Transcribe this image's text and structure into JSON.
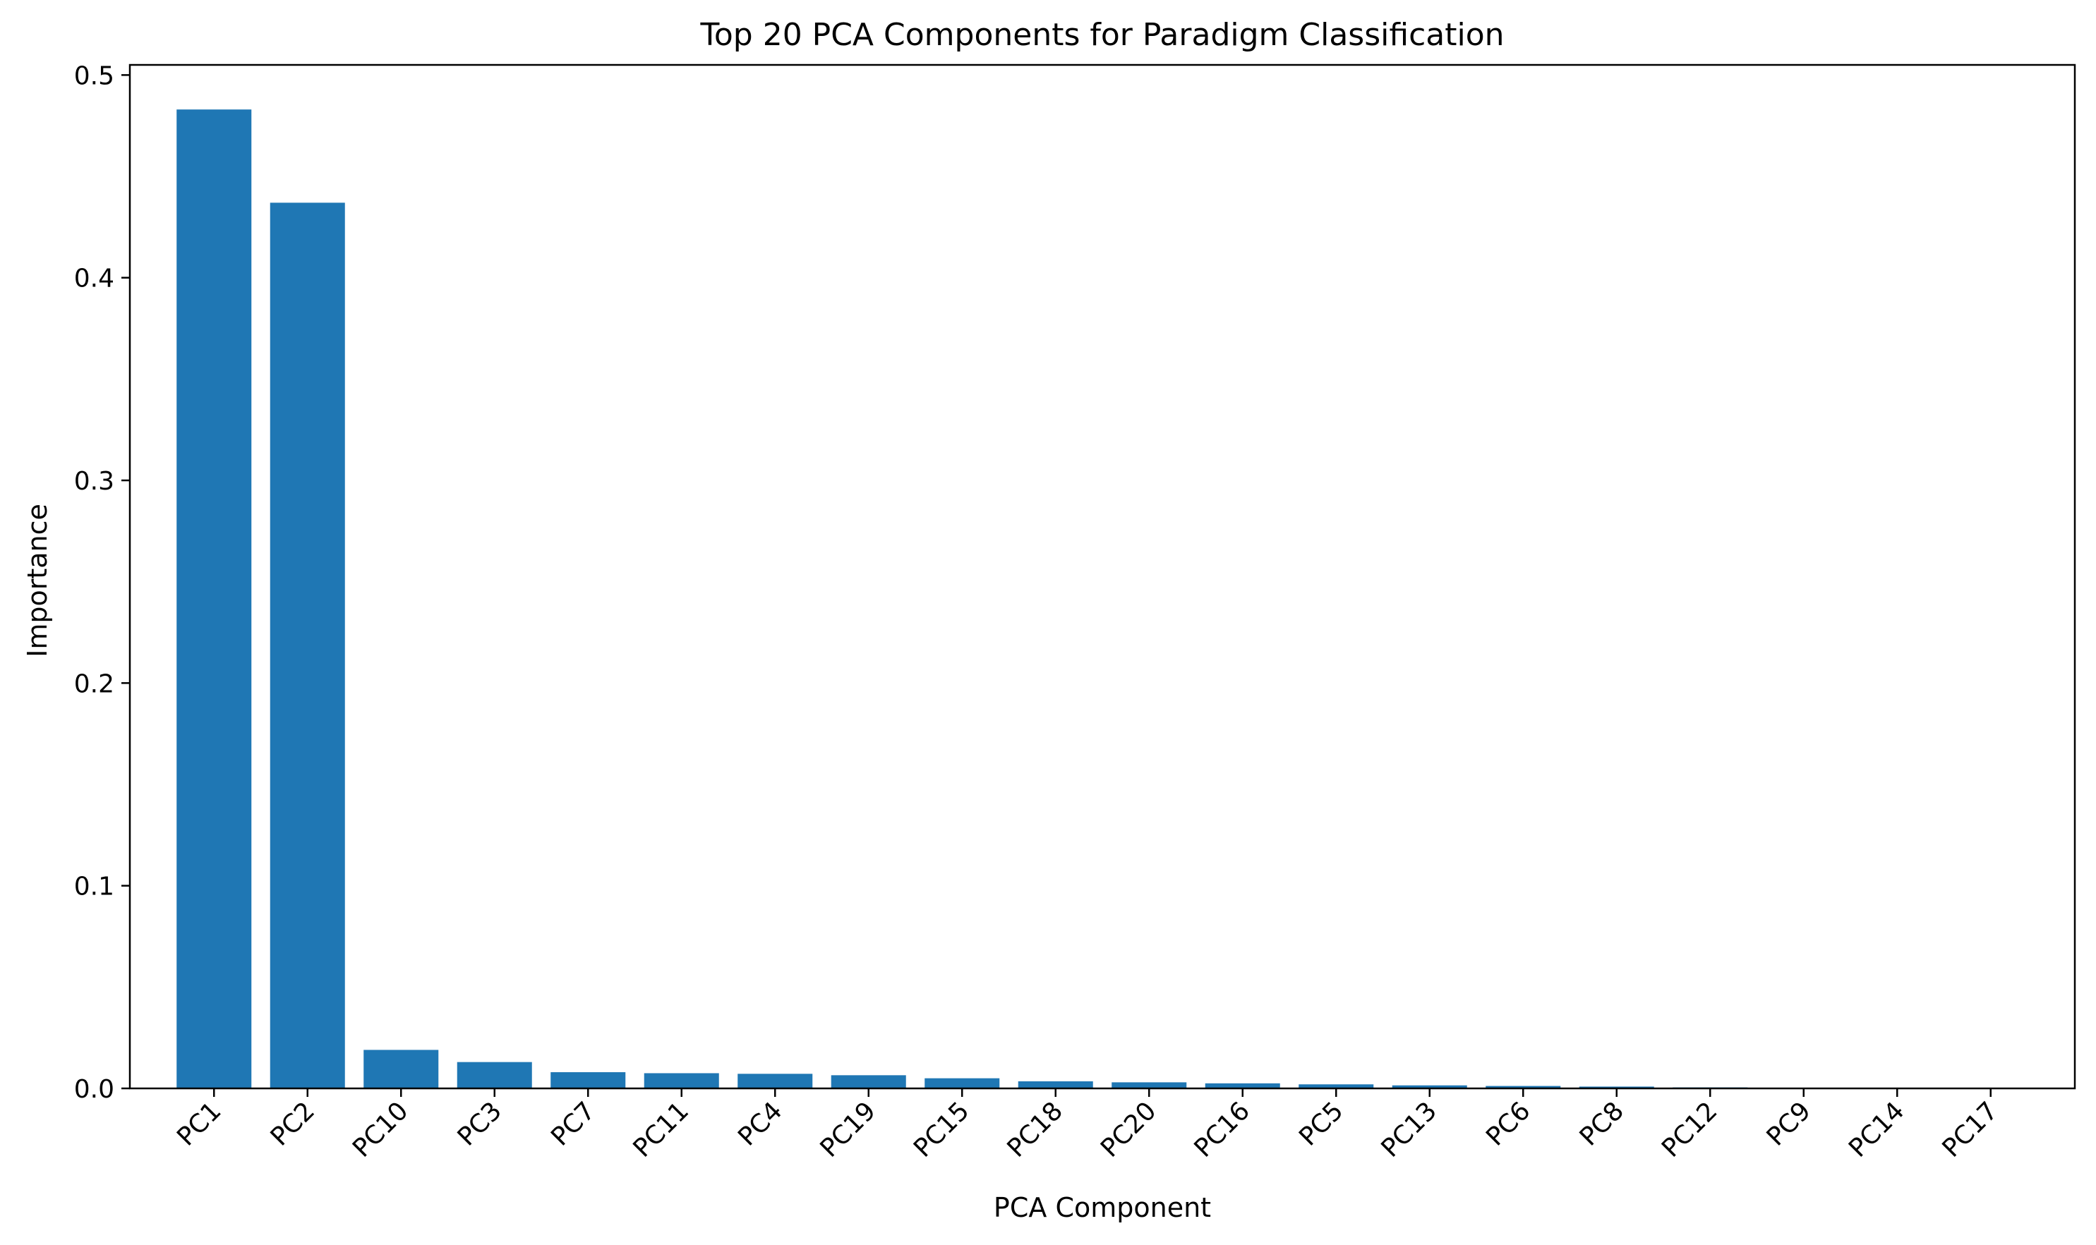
{
  "chart_data": {
    "type": "bar",
    "title": "Top 20 PCA Components for Paradigm Classification",
    "xlabel": "PCA Component",
    "ylabel": "Importance",
    "categories": [
      "PC1",
      "PC2",
      "PC10",
      "PC3",
      "PC7",
      "PC11",
      "PC4",
      "PC19",
      "PC15",
      "PC18",
      "PC20",
      "PC16",
      "PC5",
      "PC13",
      "PC6",
      "PC8",
      "PC12",
      "PC9",
      "PC14",
      "PC17"
    ],
    "values": [
      0.483,
      0.437,
      0.019,
      0.013,
      0.008,
      0.0075,
      0.0072,
      0.0065,
      0.005,
      0.0035,
      0.003,
      0.0025,
      0.002,
      0.0015,
      0.0012,
      0.0009,
      0.0005,
      0.0002,
      0.0001,
      5e-05
    ],
    "ylim": [
      0,
      0.505
    ],
    "yticks": [
      0.0,
      0.1,
      0.2,
      0.3,
      0.4,
      0.5
    ],
    "ytick_labels": [
      "0.0",
      "0.1",
      "0.2",
      "0.3",
      "0.4",
      "0.5"
    ],
    "bar_color": "#1f77b4",
    "grid": false,
    "legend": "none"
  }
}
